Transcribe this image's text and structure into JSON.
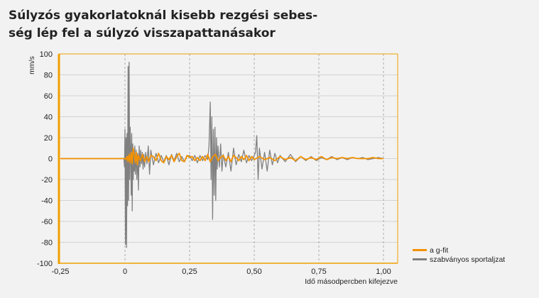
{
  "title": "Súlyzós gyakorlatoknál kisebb rezgési sebes-ség lép fel a súlyzó visszapattanásakor",
  "title_lines": [
    "Súlyzós gyakorlatoknál kisebb rezgési sebes-",
    "ség lép fel a súlyzó visszapattanásakor"
  ],
  "colors": {
    "gfit": "#f39200",
    "standard": "#808080",
    "frame": "#f0a000",
    "grid": "#c8c8c8",
    "bg": "#f2f2f2"
  },
  "chart_data": {
    "type": "line",
    "xlabel": "Idő másodpercben kifejezve",
    "ylabel": "mm/s",
    "xlim": [
      -0.25,
      1.0
    ],
    "ylim": [
      -100,
      100
    ],
    "x_ticks": [
      -0.25,
      0,
      0.25,
      0.5,
      0.75,
      1.0
    ],
    "x_tick_labels": [
      "-0,25",
      "0",
      "0,25",
      "0,50",
      "0,75",
      "1,00"
    ],
    "y_ticks": [
      100,
      80,
      60,
      40,
      20,
      0,
      -20,
      -40,
      -60,
      -80,
      -100
    ],
    "y_tick_labels": [
      "100",
      "80",
      "60",
      "40",
      "20",
      "0",
      "-20",
      "-40",
      "-60",
      "-80",
      "-100"
    ],
    "grid": true,
    "legend_position": "right",
    "series": [
      {
        "name": "a g-fit",
        "color": "#f39200",
        "x": [
          -0.25,
          0,
          0.004,
          0.008,
          0.012,
          0.016,
          0.02,
          0.024,
          0.028,
          0.032,
          0.036,
          0.04,
          0.044,
          0.048,
          0.052,
          0.06,
          0.068,
          0.076,
          0.084,
          0.092,
          0.1,
          0.11,
          0.12,
          0.13,
          0.14,
          0.15,
          0.16,
          0.17,
          0.18,
          0.19,
          0.2,
          0.21,
          0.22,
          0.23,
          0.24,
          0.25,
          0.26,
          0.27,
          0.28,
          0.29,
          0.3,
          0.31,
          0.32,
          0.33,
          0.34,
          0.35,
          0.36,
          0.37,
          0.38,
          0.39,
          0.4,
          0.41,
          0.42,
          0.43,
          0.44,
          0.45,
          0.46,
          0.47,
          0.48,
          0.49,
          0.5,
          0.52,
          0.54,
          0.56,
          0.58,
          0.6,
          0.62,
          0.64,
          0.66,
          0.68,
          0.7,
          0.72,
          0.74,
          0.76,
          0.78,
          0.8,
          0.82,
          0.84,
          0.86,
          0.88,
          0.9,
          0.92,
          0.94,
          0.96,
          0.98,
          1.0
        ],
        "y": [
          0,
          0,
          -1,
          2,
          -3,
          4,
          -4,
          6,
          -5,
          10,
          4,
          -4,
          6,
          -6,
          3,
          -2,
          4,
          -3,
          2,
          -3,
          3,
          2,
          -2,
          5,
          -2,
          -4,
          2,
          -1,
          3,
          -3,
          2,
          5,
          -2,
          -3,
          3,
          1,
          2,
          -2,
          1,
          -2,
          2,
          -2,
          4,
          -3,
          2,
          4,
          -2,
          1,
          3,
          -2,
          2,
          -3,
          3,
          1,
          -2,
          2,
          -1,
          3,
          -2,
          2,
          -1,
          2,
          -1,
          1,
          -2,
          2,
          -1,
          1,
          -2,
          2,
          -1,
          1,
          -1,
          2,
          -1,
          1,
          0,
          1,
          0,
          1,
          0,
          0,
          0,
          1,
          0,
          0
        ]
      },
      {
        "name": "szabványos sportaljzat",
        "color": "#808080",
        "x": [
          -0.25,
          -0.004,
          -0.002,
          0.0,
          0.002,
          0.004,
          0.006,
          0.008,
          0.01,
          0.012,
          0.014,
          0.016,
          0.018,
          0.02,
          0.022,
          0.024,
          0.026,
          0.028,
          0.03,
          0.032,
          0.034,
          0.036,
          0.038,
          0.04,
          0.043,
          0.046,
          0.049,
          0.052,
          0.055,
          0.058,
          0.061,
          0.064,
          0.067,
          0.07,
          0.073,
          0.076,
          0.08,
          0.085,
          0.09,
          0.095,
          0.1,
          0.11,
          0.12,
          0.13,
          0.14,
          0.15,
          0.16,
          0.17,
          0.18,
          0.19,
          0.2,
          0.21,
          0.22,
          0.23,
          0.24,
          0.25,
          0.26,
          0.27,
          0.28,
          0.29,
          0.3,
          0.31,
          0.32,
          0.325,
          0.33,
          0.333,
          0.336,
          0.339,
          0.342,
          0.345,
          0.348,
          0.351,
          0.354,
          0.357,
          0.36,
          0.365,
          0.37,
          0.375,
          0.38,
          0.39,
          0.4,
          0.41,
          0.42,
          0.43,
          0.44,
          0.45,
          0.46,
          0.47,
          0.48,
          0.49,
          0.5,
          0.505,
          0.51,
          0.515,
          0.52,
          0.53,
          0.54,
          0.55,
          0.56,
          0.57,
          0.58,
          0.59,
          0.6,
          0.62,
          0.64,
          0.66,
          0.68,
          0.7,
          0.72,
          0.74,
          0.76,
          0.78,
          0.8,
          0.82,
          0.84,
          0.86,
          0.88,
          0.9,
          0.92,
          0.94,
          0.96,
          0.98,
          1.0
        ],
        "y": [
          0,
          0,
          -8,
          28,
          -82,
          20,
          -85,
          24,
          -45,
          88,
          -40,
          92,
          -20,
          30,
          10,
          -35,
          24,
          -50,
          14,
          -20,
          8,
          -12,
          12,
          -15,
          8,
          -20,
          5,
          -30,
          12,
          -8,
          8,
          -5,
          6,
          -10,
          4,
          -8,
          6,
          -5,
          12,
          -15,
          8,
          -6,
          5,
          -4,
          3,
          -3,
          3,
          -6,
          4,
          -2,
          5,
          -3,
          2,
          -3,
          2,
          3,
          -2,
          3,
          -4,
          3,
          -2,
          3,
          -1,
          12,
          54,
          -20,
          40,
          -58,
          28,
          -35,
          30,
          -40,
          20,
          -10,
          12,
          -8,
          14,
          -12,
          4,
          -8,
          6,
          -12,
          10,
          -6,
          4,
          -3,
          8,
          -4,
          3,
          -2,
          3,
          6,
          22,
          -20,
          10,
          -10,
          6,
          -12,
          8,
          -6,
          5,
          -4,
          3,
          -3,
          4,
          -3,
          2,
          -2,
          2,
          -2,
          1,
          -1,
          2,
          -1,
          1,
          -1,
          1,
          0,
          1,
          -1,
          0,
          1,
          0
        ]
      }
    ]
  }
}
